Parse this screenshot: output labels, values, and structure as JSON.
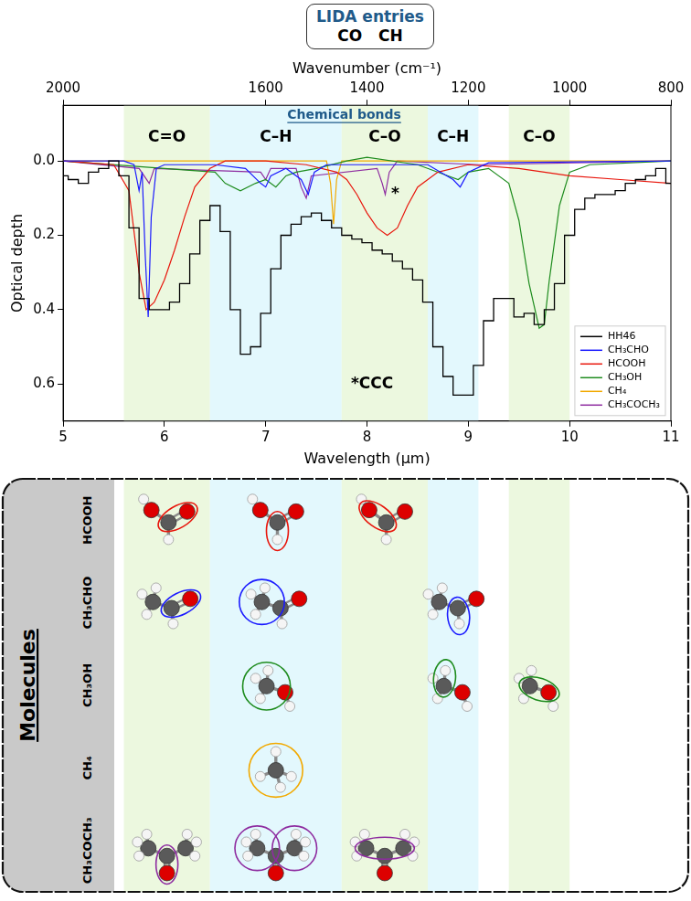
{
  "header": {
    "title": "LIDA entries",
    "entries": [
      "CO",
      "CH"
    ]
  },
  "chart_data": {
    "type": "line",
    "subtitle": "Chemical bonds",
    "x_label": "Wavelength (μm)",
    "x2_label": "Wavenumber (cm⁻¹)",
    "y_label": "Optical depth",
    "xlim": [
      5,
      11
    ],
    "xticks": [
      5,
      6,
      7,
      8,
      9,
      10,
      11
    ],
    "x2lim": [
      2000,
      800
    ],
    "x2ticks": [
      2000,
      1600,
      1400,
      1200,
      1000,
      800
    ],
    "ylim": [
      0.7,
      -0.15
    ],
    "yticks": [
      {
        "value": 0,
        "label": "0.0"
      },
      0.2,
      0.4,
      0.6
    ],
    "grid": false,
    "legend": "lower right",
    "bands": [
      {
        "label": "C=O",
        "x0": 5.6,
        "x1": 6.45,
        "color": "#ecf8df"
      },
      {
        "label": "C–H",
        "x0": 6.45,
        "x1": 7.75,
        "color": "#e3f8fd"
      },
      {
        "label": "C–O",
        "x0": 7.75,
        "x1": 8.6,
        "color": "#ecf8df"
      },
      {
        "label": "C–H",
        "x0": 8.6,
        "x1": 9.1,
        "color": "#e3f8fd"
      },
      {
        "label": "C–O",
        "x0": 9.4,
        "x1": 10.0,
        "color": "#ecf8df"
      }
    ],
    "annotations": [
      {
        "text": "*",
        "x": 8.28,
        "y": 0.09
      },
      {
        "text": "*CCC",
        "x": 8.05,
        "y": 0.6
      }
    ],
    "series": [
      {
        "name": "HH46",
        "color": "#000000",
        "line_style": "steps",
        "x": [
          5.0,
          5.1,
          5.2,
          5.3,
          5.4,
          5.5,
          5.6,
          5.7,
          5.8,
          5.9,
          6.0,
          6.1,
          6.2,
          6.3,
          6.4,
          6.5,
          6.6,
          6.7,
          6.8,
          6.9,
          7.0,
          7.1,
          7.2,
          7.3,
          7.4,
          7.5,
          7.6,
          7.7,
          7.8,
          7.9,
          8.0,
          8.1,
          8.2,
          8.3,
          8.4,
          8.5,
          8.6,
          8.7,
          8.8,
          8.9,
          9.0,
          9.1,
          9.2,
          9.3,
          9.4,
          9.5,
          9.6,
          9.7,
          9.8,
          9.9,
          10.0,
          10.1,
          10.2,
          10.3,
          10.4,
          10.5,
          10.6,
          10.7,
          10.8,
          10.9,
          11.0
        ],
        "values": [
          0.04,
          0.05,
          0.06,
          0.03,
          0.02,
          0.0,
          0.04,
          0.18,
          0.37,
          0.4,
          0.4,
          0.38,
          0.33,
          0.25,
          0.16,
          0.12,
          0.19,
          0.4,
          0.52,
          0.5,
          0.41,
          0.29,
          0.2,
          0.17,
          0.15,
          0.14,
          0.16,
          0.18,
          0.2,
          0.21,
          0.22,
          0.24,
          0.25,
          0.27,
          0.29,
          0.32,
          0.38,
          0.5,
          0.58,
          0.63,
          0.63,
          0.55,
          0.43,
          0.37,
          0.37,
          0.42,
          0.41,
          0.44,
          0.4,
          0.33,
          0.2,
          0.13,
          0.1,
          0.09,
          0.09,
          0.08,
          0.06,
          0.05,
          0.04,
          0.02,
          0.06
        ]
      },
      {
        "name": "CH₃CHO",
        "color": "#1a1aff",
        "line_style": "solid",
        "x": [
          5.0,
          5.6,
          5.7,
          5.75,
          5.78,
          5.81,
          5.84,
          5.87,
          5.92,
          6.0,
          6.5,
          6.8,
          6.95,
          7.0,
          7.05,
          7.2,
          7.35,
          7.42,
          7.48,
          7.6,
          8.6,
          8.85,
          8.92,
          9.0,
          9.2,
          11.0
        ],
        "values": [
          0.0,
          0.0,
          0.01,
          0.08,
          0.03,
          0.25,
          0.42,
          0.15,
          0.02,
          0.01,
          0.01,
          0.02,
          0.06,
          0.07,
          0.04,
          0.02,
          0.05,
          0.09,
          0.03,
          0.01,
          0.01,
          0.05,
          0.07,
          0.03,
          0.005,
          0.0
        ]
      },
      {
        "name": "HCOOH",
        "color": "#e8160c",
        "line_style": "solid",
        "x": [
          5.0,
          5.5,
          5.65,
          5.75,
          5.82,
          5.9,
          6.0,
          6.1,
          6.2,
          6.3,
          6.45,
          6.6,
          7.0,
          7.4,
          7.7,
          7.8,
          7.9,
          8.0,
          8.1,
          8.2,
          8.3,
          8.4,
          8.5,
          8.7,
          9.0,
          9.5,
          10.0,
          10.5,
          11.0
        ],
        "values": [
          0.0,
          0.01,
          0.08,
          0.3,
          0.4,
          0.38,
          0.32,
          0.24,
          0.15,
          0.07,
          0.02,
          0.0,
          0.0,
          0.01,
          0.03,
          0.05,
          0.09,
          0.14,
          0.18,
          0.2,
          0.18,
          0.12,
          0.07,
          0.03,
          0.01,
          0.02,
          0.04,
          0.05,
          0.06
        ]
      },
      {
        "name": "CH₃OH",
        "color": "#1e8c1e",
        "line_style": "solid",
        "x": [
          5.0,
          6.0,
          6.5,
          6.6,
          6.75,
          6.9,
          7.0,
          7.1,
          7.2,
          7.3,
          7.5,
          7.8,
          8.0,
          8.5,
          8.8,
          8.9,
          9.0,
          9.2,
          9.4,
          9.5,
          9.6,
          9.7,
          9.75,
          9.8,
          9.9,
          10.0,
          10.2,
          11.0
        ],
        "values": [
          0.0,
          0.02,
          0.03,
          0.06,
          0.08,
          0.06,
          0.05,
          0.07,
          0.04,
          0.03,
          0.02,
          0.0,
          -0.01,
          0.01,
          0.04,
          0.05,
          0.03,
          0.02,
          0.06,
          0.16,
          0.33,
          0.45,
          0.44,
          0.32,
          0.12,
          0.03,
          0.01,
          0.0
        ]
      },
      {
        "name": "CH₄",
        "color": "#f2a900",
        "line_style": "solid",
        "x": [
          5.0,
          7.6,
          7.64,
          7.67,
          7.7,
          7.75,
          11.0
        ],
        "values": [
          0.0,
          0.0,
          0.06,
          0.17,
          0.05,
          0.0,
          0.0
        ]
      },
      {
        "name": "CH₃COCH₃",
        "color": "#8e2ca0",
        "line_style": "solid",
        "x": [
          5.0,
          5.75,
          5.85,
          5.9,
          6.95,
          7.0,
          7.05,
          7.3,
          7.35,
          7.4,
          7.45,
          8.1,
          8.15,
          8.18,
          8.22,
          8.3,
          9.1,
          11.0
        ],
        "values": [
          0.0,
          0.02,
          0.06,
          0.02,
          0.03,
          0.05,
          0.02,
          0.02,
          0.07,
          0.1,
          0.04,
          0.02,
          0.06,
          0.09,
          0.03,
          0.0,
          0.01,
          0.0
        ]
      }
    ]
  },
  "diagram": {
    "title": "Molecules",
    "rows": [
      {
        "molecule": "HCOOH",
        "bands": [
          0,
          1,
          2
        ]
      },
      {
        "molecule": "CH₃CHO",
        "bands": [
          0,
          1,
          3
        ]
      },
      {
        "molecule": "CH₃OH",
        "bands": [
          1,
          3,
          4
        ]
      },
      {
        "molecule": "CH₄",
        "bands": [
          1
        ]
      },
      {
        "molecule": "CH₃COCH₃",
        "bands": [
          0,
          1,
          2
        ]
      }
    ]
  }
}
